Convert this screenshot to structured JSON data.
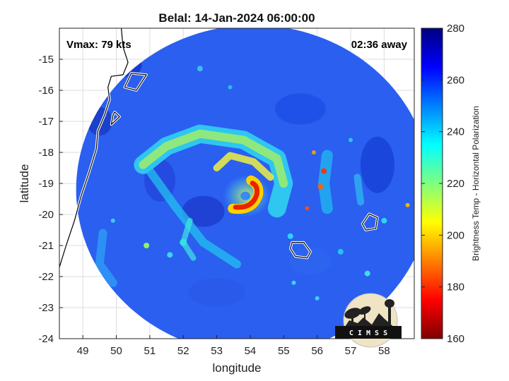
{
  "title": "Belal: 14-Jan-2024 06:00:00",
  "annotations": {
    "vmax": "Vmax: 79 kts",
    "away": "02:36 away"
  },
  "logo": {
    "text": "C I M S S"
  },
  "chart_data": {
    "type": "heatmap",
    "title": "Belal: 14-Jan-2024 06:00:00",
    "xlabel": "longitude",
    "ylabel": "latitude",
    "xlim": [
      48.3,
      58.9
    ],
    "ylim": [
      -24,
      -14
    ],
    "xticks": [
      49,
      50,
      51,
      52,
      53,
      54,
      55,
      56,
      57,
      58
    ],
    "yticks": [
      -15,
      -16,
      -17,
      -18,
      -19,
      -20,
      -21,
      -22,
      -23,
      -24
    ],
    "grid": true,
    "colorbar": {
      "label": "Brightness Temp - Horizontal Polarization",
      "range": [
        160,
        280
      ],
      "ticks": [
        280,
        260,
        240,
        220,
        200,
        180,
        160
      ],
      "colormap": [
        "#7f0000",
        "#ff0000",
        "#ffff00",
        "#00ffff",
        "#0000ff",
        "#00007f"
      ]
    },
    "swath": {
      "center": [
        54.1,
        -19.2
      ],
      "radius_deg": 5.3
    },
    "storm_center": [
      53.9,
      -19.4
    ]
  }
}
